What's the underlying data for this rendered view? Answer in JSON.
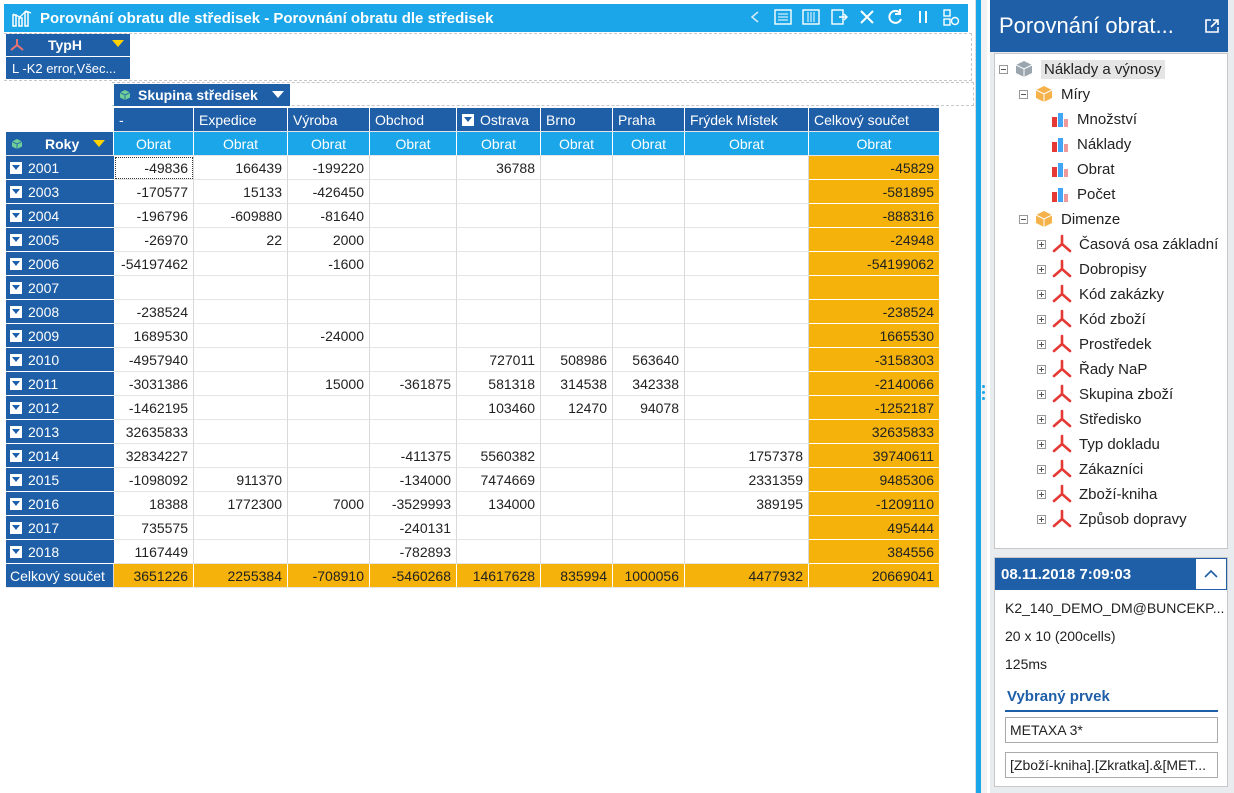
{
  "window": {
    "title": "Porovnání obratu dle středisek - Porovnání obratu dle středisek"
  },
  "filter": {
    "dimension_label": "TypH",
    "value": "L -K2 error,Všec..."
  },
  "column_dimension": {
    "label": "Skupina středisek"
  },
  "row_dimension": {
    "label": "Roky"
  },
  "grid": {
    "columns": [
      "-",
      "Expedice",
      "Výroba",
      "Obchod",
      "Ostrava",
      "Brno",
      "Praha",
      "Frýdek Místek",
      "Celkový součet"
    ],
    "measure": "Obrat",
    "rows": [
      {
        "year": "2001",
        "values": [
          "-49836",
          "166439",
          "-199220",
          "",
          "36788",
          "",
          "",
          "",
          "-45829"
        ]
      },
      {
        "year": "2003",
        "values": [
          "-170577",
          "15133",
          "-426450",
          "",
          "",
          "",
          "",
          "",
          "-581895"
        ]
      },
      {
        "year": "2004",
        "values": [
          "-196796",
          "-609880",
          "-81640",
          "",
          "",
          "",
          "",
          "",
          "-888316"
        ]
      },
      {
        "year": "2005",
        "values": [
          "-26970",
          "22",
          "2000",
          "",
          "",
          "",
          "",
          "",
          "-24948"
        ]
      },
      {
        "year": "2006",
        "values": [
          "-54197462",
          "",
          "-1600",
          "",
          "",
          "",
          "",
          "",
          "-54199062"
        ]
      },
      {
        "year": "2007",
        "values": [
          "",
          "",
          "",
          "",
          "",
          "",
          "",
          "",
          ""
        ]
      },
      {
        "year": "2008",
        "values": [
          "-238524",
          "",
          "",
          "",
          "",
          "",
          "",
          "",
          "-238524"
        ]
      },
      {
        "year": "2009",
        "values": [
          "1689530",
          "",
          "-24000",
          "",
          "",
          "",
          "",
          "",
          "1665530"
        ]
      },
      {
        "year": "2010",
        "values": [
          "-4957940",
          "",
          "",
          "",
          "727011",
          "508986",
          "563640",
          "",
          "-3158303"
        ]
      },
      {
        "year": "2011",
        "values": [
          "-3031386",
          "",
          "15000",
          "-361875",
          "581318",
          "314538",
          "342338",
          "",
          "-2140066"
        ]
      },
      {
        "year": "2012",
        "values": [
          "-1462195",
          "",
          "",
          "",
          "103460",
          "12470",
          "94078",
          "",
          "-1252187"
        ]
      },
      {
        "year": "2013",
        "values": [
          "32635833",
          "",
          "",
          "",
          "",
          "",
          "",
          "",
          "32635833"
        ]
      },
      {
        "year": "2014",
        "values": [
          "32834227",
          "",
          "",
          "-411375",
          "5560382",
          "",
          "",
          "1757378",
          "39740611"
        ]
      },
      {
        "year": "2015",
        "values": [
          "-1098092",
          "911370",
          "",
          "-134000",
          "7474669",
          "",
          "",
          "2331359",
          "9485306"
        ]
      },
      {
        "year": "2016",
        "values": [
          "18388",
          "1772300",
          "7000",
          "-3529993",
          "134000",
          "",
          "",
          "389195",
          "-1209110"
        ]
      },
      {
        "year": "2017",
        "values": [
          "735575",
          "",
          "",
          "-240131",
          "",
          "",
          "",
          "",
          "495444"
        ]
      },
      {
        "year": "2018",
        "values": [
          "1167449",
          "",
          "",
          "-782893",
          "",
          "",
          "",
          "",
          "384556"
        ]
      }
    ],
    "total_label": "Celkový součet",
    "totals": [
      "3651226",
      "2255384",
      "-708910",
      "-5460268",
      "14617628",
      "835994",
      "1000056",
      "4477932",
      "20669041"
    ]
  },
  "sidepanel": {
    "title": "Porovnání obrat...",
    "tree": {
      "root": "Náklady a výnosy",
      "measures_label": "Míry",
      "measures": [
        "Množství",
        "Náklady",
        "Obrat",
        "Počet"
      ],
      "dimensions_label": "Dimenze",
      "dimensions": [
        "Časová osa základní",
        "Dobropisy",
        "Kód zakázky",
        "Kód zboží",
        "Prostředek",
        "Řady NaP",
        "Skupina zboží",
        "Středisko",
        "Typ dokladu",
        "Zákazníci",
        "Zboží-kniha",
        "Způsob dopravy"
      ]
    },
    "info": {
      "timestamp": "08.11.2018 7:09:03",
      "connection": "K2_140_DEMO_DM@BUNCEKP...",
      "size": "20 x 10 (200cells)",
      "time": "125ms",
      "selected_title": "Vybraný prvek",
      "selected_value": "METAXA 3*",
      "selected_mdx": "[Zboží-kniha].[Zkratka].&[MET..."
    }
  },
  "colors": {
    "title_bar": "#1aa6e8",
    "header_dark": "#1f5fa8",
    "totals": "#f5b20b"
  }
}
